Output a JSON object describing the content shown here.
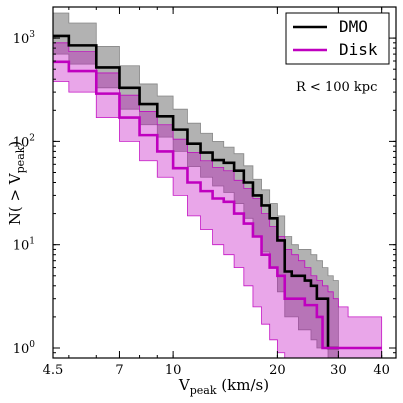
{
  "chart_data": {
    "type": "line",
    "x_scale": "log",
    "y_scale": "log",
    "xlim": [
      4.5,
      44
    ],
    "ylim": [
      0.8,
      2000
    ],
    "xlabel": {
      "main": "V",
      "sub": "peak",
      "unit": " (km/s)"
    },
    "ylabel": {
      "prefix": "N( > V",
      "sub": "peak",
      "suffix": ")"
    },
    "x_ticks": [
      {
        "value": 4.5,
        "label": "4.5"
      },
      {
        "value": 7,
        "label": "7"
      },
      {
        "value": 10,
        "label": "10"
      },
      {
        "value": 20,
        "label": "20"
      },
      {
        "value": 30,
        "label": "30"
      },
      {
        "value": 40,
        "label": "40"
      }
    ],
    "y_ticks": [
      {
        "value": 1,
        "base": "10",
        "exp": "0"
      },
      {
        "value": 10,
        "base": "10",
        "exp": "1"
      },
      {
        "value": 100,
        "base": "10",
        "exp": "2"
      },
      {
        "value": 1000,
        "base": "10",
        "exp": "3"
      }
    ],
    "annotation": "R < 100 kpc",
    "legend_position": "top-right",
    "grid": false,
    "series": [
      {
        "name": "DMO",
        "color": "#000000",
        "band_color": "#7f7f7f",
        "x": [
          4.5,
          5,
          6,
          7,
          8,
          9,
          10,
          11,
          12,
          13,
          14,
          15,
          16,
          17,
          18,
          19,
          20,
          21,
          22,
          23,
          24,
          25,
          26,
          27,
          28,
          29,
          30
        ],
        "y": [
          1050,
          850,
          520,
          330,
          230,
          175,
          130,
          95,
          78,
          66,
          62,
          52,
          40,
          30,
          24,
          18,
          11,
          5.5,
          5,
          5,
          4.5,
          4,
          3,
          3,
          1,
          1,
          1
        ],
        "lower": [
          700,
          560,
          330,
          205,
          145,
          110,
          80,
          57,
          45,
          37,
          32,
          25,
          18,
          12,
          8.5,
          6,
          3.5,
          2.0,
          2.0,
          1.5,
          1.5,
          1.2,
          1.0,
          1.0,
          0.8,
          0.8,
          0.8
        ],
        "upper": [
          1750,
          1400,
          830,
          540,
          360,
          275,
          205,
          150,
          120,
          100,
          88,
          76,
          58,
          43,
          34,
          25,
          19,
          12,
          10,
          9,
          9,
          8,
          7,
          6,
          5,
          4.5,
          3.5
        ]
      },
      {
        "name": "Disk",
        "color": "#bf00bf",
        "band_color": "#bf00bf",
        "x": [
          4.5,
          5,
          6,
          7,
          8,
          9,
          10,
          11,
          12,
          13,
          14,
          15,
          16,
          17,
          18,
          19,
          20,
          21,
          22,
          23,
          24,
          25,
          26,
          27,
          28,
          29,
          30,
          32,
          34,
          36,
          38,
          40
        ],
        "y": [
          590,
          480,
          290,
          170,
          115,
          80,
          55,
          40,
          33,
          28,
          26,
          20,
          16,
          12,
          8,
          6,
          5,
          3,
          3,
          3,
          2.6,
          2.6,
          2,
          1,
          1,
          1,
          1,
          1,
          1,
          1,
          1,
          1
        ],
        "lower": [
          380,
          300,
          170,
          100,
          65,
          45,
          30,
          19,
          14,
          10,
          8,
          6,
          4,
          2.5,
          1.7,
          1.2,
          0.9,
          0.8,
          0.8,
          0.8,
          0.8,
          0.8,
          0.8,
          0.8,
          0.8,
          0.8,
          0.8,
          0.8,
          0.8,
          0.8,
          0.8,
          0.8
        ],
        "upper": [
          900,
          740,
          460,
          280,
          195,
          145,
          105,
          78,
          65,
          56,
          52,
          42,
          35,
          28,
          20,
          15,
          12,
          9,
          8,
          7,
          6,
          5,
          4.5,
          4,
          3.5,
          3,
          2.5,
          2,
          2,
          2,
          2,
          2
        ]
      }
    ]
  }
}
